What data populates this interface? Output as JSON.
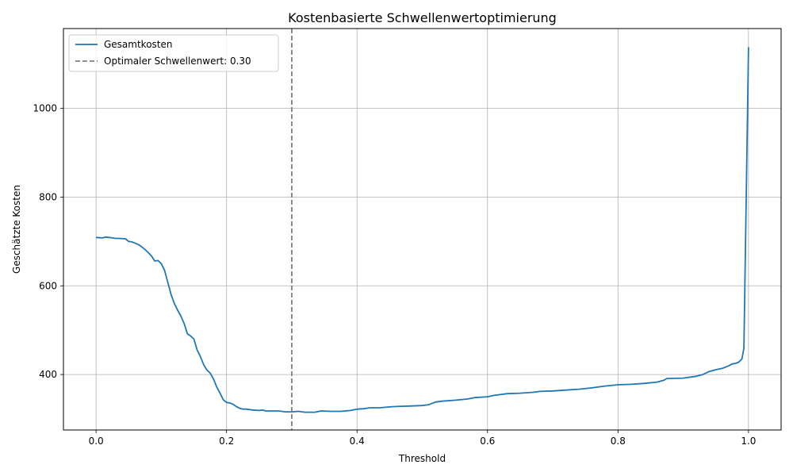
{
  "chart_data": {
    "type": "line",
    "title": "Kostenbasierte Schwellenwertoptimierung",
    "xlabel": "Threshold",
    "ylabel": "Geschätzte Kosten",
    "xlim": [
      -0.05,
      1.05
    ],
    "ylim": [
      275,
      1180
    ],
    "xticks": [
      0.0,
      0.2,
      0.4,
      0.6,
      0.8,
      1.0
    ],
    "xtick_labels": [
      "0.0",
      "0.2",
      "0.4",
      "0.6",
      "0.8",
      "1.0"
    ],
    "yticks": [
      400,
      600,
      800,
      1000
    ],
    "ytick_labels": [
      "400",
      "600",
      "800",
      "1000"
    ],
    "grid": true,
    "legend_position": "top-left",
    "series": [
      {
        "name": "Gesamtkosten",
        "color": "#1f77b4",
        "x": [
          0.0,
          0.01,
          0.015,
          0.02,
          0.025,
          0.03,
          0.035,
          0.045,
          0.05,
          0.055,
          0.06,
          0.065,
          0.07,
          0.075,
          0.08,
          0.085,
          0.09,
          0.095,
          0.1,
          0.105,
          0.11,
          0.115,
          0.12,
          0.125,
          0.13,
          0.135,
          0.14,
          0.145,
          0.15,
          0.155,
          0.16,
          0.165,
          0.17,
          0.175,
          0.18,
          0.185,
          0.19,
          0.195,
          0.2,
          0.205,
          0.21,
          0.215,
          0.22,
          0.225,
          0.23,
          0.24,
          0.25,
          0.255,
          0.26,
          0.27,
          0.28,
          0.29,
          0.3,
          0.31,
          0.32,
          0.335,
          0.345,
          0.36,
          0.375,
          0.39,
          0.4,
          0.41,
          0.42,
          0.435,
          0.45,
          0.46,
          0.48,
          0.5,
          0.51,
          0.52,
          0.53,
          0.55,
          0.57,
          0.58,
          0.6,
          0.61,
          0.63,
          0.65,
          0.67,
          0.68,
          0.7,
          0.72,
          0.74,
          0.76,
          0.78,
          0.8,
          0.82,
          0.84,
          0.86,
          0.87,
          0.875,
          0.9,
          0.92,
          0.93,
          0.94,
          0.95,
          0.96,
          0.97,
          0.975,
          0.98,
          0.985,
          0.99,
          0.993,
          0.996,
          1.0
        ],
        "y": [
          709,
          708,
          710,
          709,
          708,
          707,
          707,
          706,
          700,
          699,
          696,
          693,
          688,
          682,
          675,
          667,
          656,
          657,
          650,
          635,
          608,
          580,
          560,
          545,
          532,
          515,
          492,
          487,
          480,
          455,
          440,
          422,
          410,
          403,
          390,
          372,
          358,
          343,
          337,
          336,
          333,
          328,
          324,
          322,
          322,
          320,
          319,
          320,
          318,
          318,
          318,
          316,
          316,
          317,
          315,
          315,
          318,
          317,
          317,
          319,
          322,
          323,
          325,
          325,
          327,
          328,
          329,
          330,
          332,
          338,
          340,
          342,
          345,
          348,
          350,
          353,
          357,
          358,
          360,
          362,
          363,
          365,
          367,
          370,
          374,
          377,
          378,
          380,
          383,
          387,
          391,
          392,
          396,
          400,
          407,
          411,
          414,
          420,
          424,
          425,
          428,
          435,
          460,
          750,
          1138
        ]
      },
      {
        "name": "Optimaler Schwellenwert: 0.30",
        "color": "#808080",
        "style": "dashed",
        "vline_x": 0.3
      }
    ]
  }
}
